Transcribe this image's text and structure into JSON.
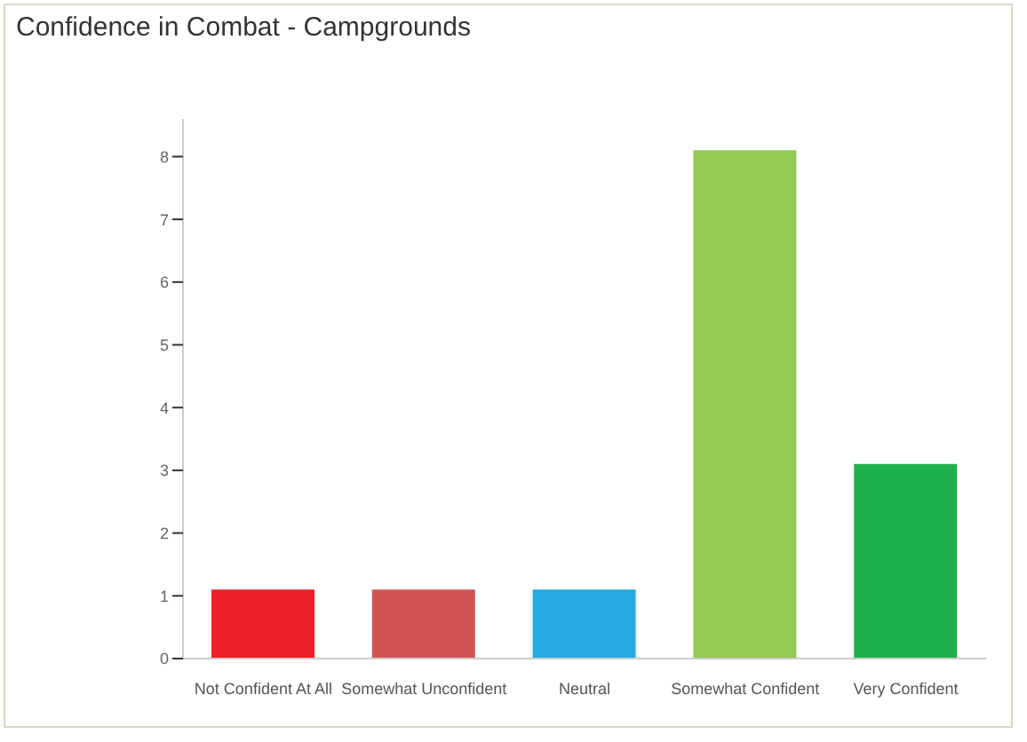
{
  "chart_data": {
    "type": "bar",
    "title": "Confidence in Combat - Campgrounds",
    "categories": [
      "Not Confident At All",
      "Somewhat Unconfident",
      "Neutral",
      "Somewhat Confident",
      "Very Confident"
    ],
    "values": [
      1.1,
      1.1,
      1.1,
      8.1,
      3.1
    ],
    "colors": [
      "#ee2028",
      "#d05452",
      "#25abe2",
      "#95c955",
      "#1fb04e"
    ],
    "ylim": [
      0,
      8.6
    ],
    "yticks": [
      0,
      1,
      2,
      3,
      4,
      5,
      6,
      7,
      8
    ],
    "grid": false,
    "legend": false
  }
}
